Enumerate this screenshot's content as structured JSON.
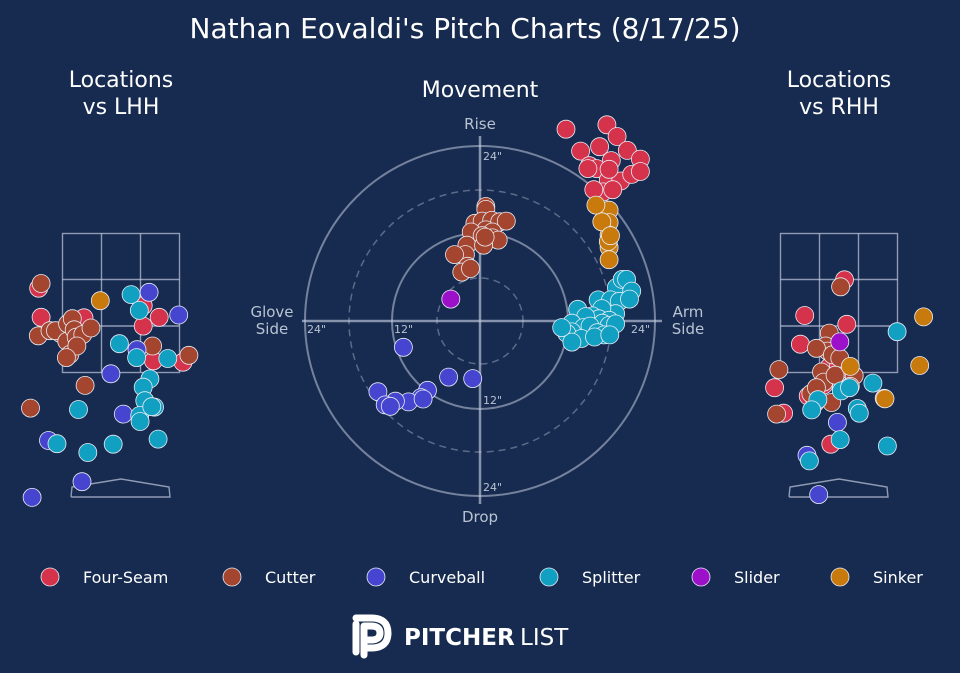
{
  "title": "Nathan Eovaldi's Pitch Charts (8/17/25)",
  "colors": {
    "background": "#162b4f",
    "Four-Seam": "#d5324b",
    "Cutter": "#a4452f",
    "Curveball": "#4545cf",
    "Splitter": "#12a0c2",
    "Slider": "#9b10c8",
    "Sinker": "#c87a0c"
  },
  "panels": {
    "lhh": {
      "title_line1": "Locations",
      "title_line2": "vs LHH"
    },
    "movement": {
      "title": "Movement",
      "label_top": "Rise",
      "label_bottom": "Drop",
      "label_left_1": "Glove",
      "label_left_2": "Side",
      "label_right_1": "Arm",
      "label_right_2": "Side",
      "ring_label_24": "24\"",
      "ring_label_12": "12\""
    },
    "rhh": {
      "title_line1": "Locations",
      "title_line2": "vs RHH"
    }
  },
  "legend": [
    "Four-Seam",
    "Cutter",
    "Curveball",
    "Splitter",
    "Slider",
    "Sinker"
  ],
  "brand": {
    "bold": "PITCHER",
    "light": "LIST"
  },
  "chart_data": [
    {
      "type": "scatter",
      "title": "Locations vs LHH",
      "units": "feet (catcher view)",
      "xlim": [
        -2.4,
        2.4
      ],
      "ylim": [
        -0.5,
        5.1
      ],
      "series": [
        {
          "name": "Four-Seam",
          "points": [
            [
              -2.11,
              4.23
            ],
            [
              -2.05,
              3.6
            ],
            [
              -0.95,
              3.59
            ],
            [
              0.57,
              3.85
            ],
            [
              0.98,
              3.6
            ],
            [
              0.57,
              3.41
            ],
            [
              0.83,
              2.66
            ],
            [
              1.59,
              2.63
            ]
          ]
        },
        {
          "name": "Cutter",
          "points": [
            [
              -2.05,
              4.33
            ],
            [
              -2.12,
              3.2
            ],
            [
              -1.82,
              3.31
            ],
            [
              -1.55,
              3.25
            ],
            [
              -1.68,
              3.31
            ],
            [
              -1.37,
              3.46
            ],
            [
              -1.39,
              3.08
            ],
            [
              -1.25,
              3.57
            ],
            [
              -1.2,
              3.33
            ],
            [
              -1.15,
              3.17
            ],
            [
              -1.31,
              2.8
            ],
            [
              -0.98,
              3.23
            ],
            [
              -0.77,
              3.37
            ],
            [
              -1.13,
              2.98
            ],
            [
              -1.4,
              2.73
            ],
            [
              -0.92,
              2.13
            ],
            [
              0.81,
              2.98
            ],
            [
              1.74,
              2.78
            ],
            [
              -2.32,
              1.64
            ]
          ]
        },
        {
          "name": "Curveball",
          "points": [
            [
              0.72,
              4.14
            ],
            [
              1.48,
              3.65
            ],
            [
              0.41,
              2.9
            ],
            [
              -0.26,
              2.38
            ],
            [
              0.06,
              1.51
            ],
            [
              -1.86,
              0.94
            ],
            [
              -1.0,
              0.05
            ],
            [
              -2.28,
              -0.29
            ]
          ]
        },
        {
          "name": "Splitter",
          "points": [
            [
              0.26,
              4.09
            ],
            [
              0.47,
              3.75
            ],
            [
              -0.04,
              3.03
            ],
            [
              0.4,
              2.73
            ],
            [
              0.74,
              2.27
            ],
            [
              0.57,
              2.09
            ],
            [
              0.61,
              1.8
            ],
            [
              0.86,
              1.66
            ],
            [
              1.2,
              2.71
            ],
            [
              0.48,
              1.48
            ],
            [
              0.49,
              1.35
            ],
            [
              -1.09,
              1.61
            ],
            [
              0.79,
              1.67
            ],
            [
              0.95,
              0.97
            ],
            [
              -1.64,
              0.87
            ],
            [
              -0.85,
              0.68
            ],
            [
              -0.2,
              0.86
            ]
          ]
        },
        {
          "name": "Slider",
          "points": []
        },
        {
          "name": "Sinker",
          "points": [
            [
              -0.53,
              3.96
            ]
          ]
        }
      ]
    },
    {
      "type": "scatter",
      "title": "Movement",
      "units": "inches",
      "xlim": [
        -36,
        36
      ],
      "ylim": [
        -36,
        36
      ],
      "x_axis": "Glove Side (-) to Arm Side (+)",
      "y_axis": "Drop (-) to Rise (+)",
      "rings_in": [
        12,
        24
      ],
      "series": [
        {
          "name": "Four-Seam",
          "points": [
            [
              11.8,
              26.3
            ],
            [
              13.8,
              23.3
            ],
            [
              15.0,
              21.3
            ],
            [
              16.4,
              23.9
            ],
            [
              17.4,
              26.9
            ],
            [
              18.8,
              25.3
            ],
            [
              20.2,
              23.4
            ],
            [
              18.0,
              22.0
            ],
            [
              16.0,
              20.9
            ],
            [
              17.6,
              19.3
            ],
            [
              19.3,
              19.2
            ],
            [
              20.8,
              20.1
            ],
            [
              16.9,
              17.7
            ],
            [
              18.2,
              18.0
            ],
            [
              17.7,
              20.8
            ],
            [
              15.6,
              18.0
            ],
            [
              14.8,
              20.9
            ],
            [
              22.0,
              22.2
            ],
            [
              22.0,
              20.5
            ]
          ]
        },
        {
          "name": "Cutter",
          "points": [
            [
              0.8,
              15.7
            ],
            [
              0.8,
              15.3
            ],
            [
              -0.7,
              13.4
            ],
            [
              0.3,
              13.7
            ],
            [
              1.6,
              13.8
            ],
            [
              2.7,
              13.6
            ],
            [
              3.6,
              13.7
            ],
            [
              0.8,
              12.5
            ],
            [
              1.7,
              12.2
            ],
            [
              -1.2,
              12.2
            ],
            [
              1.7,
              11.4
            ],
            [
              2.5,
              11.1
            ],
            [
              0.3,
              11.7
            ],
            [
              -1.8,
              10.4
            ],
            [
              0.5,
              10.4
            ],
            [
              -2.0,
              9.1
            ],
            [
              -3.5,
              9.1
            ],
            [
              -1.7,
              7.5
            ],
            [
              -2.5,
              6.7
            ],
            [
              -1.3,
              7.2
            ],
            [
              0.7,
              11.5
            ]
          ]
        },
        {
          "name": "Curveball",
          "points": [
            [
              -10.5,
              -3.6
            ],
            [
              -4.3,
              -7.7
            ],
            [
              -1.0,
              -7.9
            ],
            [
              -7.2,
              -9.5
            ],
            [
              -14.0,
              -9.7
            ],
            [
              -8.1,
              -10.5
            ],
            [
              -9.8,
              -11.1
            ],
            [
              -11.6,
              -11.0
            ],
            [
              -7.8,
              -10.7
            ],
            [
              -13.0,
              -11.5
            ],
            [
              -12.3,
              -11.7
            ]
          ]
        },
        {
          "name": "Splitter",
          "points": [
            [
              18.7,
              4.6
            ],
            [
              19.5,
              5.7
            ],
            [
              20.1,
              5.7
            ],
            [
              20.8,
              4.1
            ],
            [
              16.2,
              2.9
            ],
            [
              17.9,
              2.9
            ],
            [
              19.1,
              2.7
            ],
            [
              20.5,
              3.0
            ],
            [
              18.6,
              1.0
            ],
            [
              16.7,
              1.7
            ],
            [
              13.4,
              1.6
            ],
            [
              15.4,
              0.7
            ],
            [
              16.3,
              0.3
            ],
            [
              17.7,
              0.1
            ],
            [
              14.5,
              0.6
            ],
            [
              12.6,
              -0.3
            ],
            [
              16.8,
              -0.3
            ],
            [
              17.7,
              -0.6
            ],
            [
              18.6,
              -0.4
            ],
            [
              14.2,
              -0.9
            ],
            [
              15.1,
              -0.7
            ],
            [
              12.6,
              -1.5
            ],
            [
              11.9,
              -1.7
            ],
            [
              16.1,
              -1.6
            ],
            [
              17.0,
              -1.9
            ],
            [
              13.9,
              -2.4
            ],
            [
              12.6,
              -2.9
            ],
            [
              11.2,
              -0.9
            ],
            [
              15.7,
              -2.2
            ],
            [
              17.8,
              -1.9
            ]
          ]
        },
        {
          "name": "Slider",
          "points": [
            [
              -4.0,
              3.0
            ]
          ]
        },
        {
          "name": "Sinker",
          "points": [
            [
              17.7,
              15.2
            ],
            [
              17.7,
              13.5
            ],
            [
              17.7,
              11.8
            ],
            [
              17.7,
              10.1
            ],
            [
              17.7,
              8.4
            ],
            [
              17.6,
              10.9
            ],
            [
              16.7,
              13.6
            ],
            [
              15.9,
              15.9
            ],
            [
              17.9,
              11.7
            ]
          ]
        }
      ]
    },
    {
      "type": "scatter",
      "title": "Locations vs RHH",
      "units": "feet (catcher view)",
      "xlim": [
        -2.4,
        2.4
      ],
      "ylim": [
        -0.5,
        5.1
      ],
      "series": [
        {
          "name": "Four-Seam",
          "points": [
            [
              0.14,
              4.41
            ],
            [
              0.2,
              3.45
            ],
            [
              -0.88,
              3.64
            ],
            [
              -0.99,
              3.02
            ],
            [
              -0.13,
              2.92
            ],
            [
              -0.19,
              2.58
            ],
            [
              -0.26,
              2.52
            ],
            [
              0.22,
              2.48
            ],
            [
              -0.39,
              2.14
            ],
            [
              1.16,
              1.85
            ],
            [
              -0.79,
              1.9
            ],
            [
              -0.01,
              2.55
            ],
            [
              -1.65,
              2.08
            ],
            [
              -1.42,
              1.53
            ],
            [
              -0.15,
              2.92
            ],
            [
              -0.21,
              0.86
            ],
            [
              -0.62,
              1.74
            ]
          ]
        },
        {
          "name": "Cutter",
          "points": [
            [
              0.04,
              4.26
            ],
            [
              -0.25,
              3.26
            ],
            [
              -0.34,
              2.98
            ],
            [
              -0.29,
              2.87
            ],
            [
              -0.58,
              2.93
            ],
            [
              -0.17,
              2.79
            ],
            [
              0.02,
              2.72
            ],
            [
              -0.45,
              2.42
            ],
            [
              -0.39,
              2.2
            ],
            [
              -0.1,
              2.35
            ],
            [
              0.39,
              2.34
            ],
            [
              0.29,
              2.11
            ],
            [
              -1.54,
              2.47
            ],
            [
              -1.6,
              1.51
            ],
            [
              -0.72,
              1.95
            ],
            [
              -0.58,
              2.08
            ],
            [
              -0.19,
              1.76
            ]
          ]
        },
        {
          "name": "Curveball",
          "points": [
            [
              -0.04,
              1.33
            ],
            [
              -0.82,
              0.62
            ],
            [
              -0.52,
              -0.23
            ]
          ]
        },
        {
          "name": "Splitter",
          "points": [
            [
              0.06,
              2.01
            ],
            [
              1.49,
              3.29
            ],
            [
              0.27,
              2.08
            ],
            [
              0.87,
              2.18
            ],
            [
              0.47,
              1.63
            ],
            [
              0.52,
              1.53
            ],
            [
              -0.54,
              1.82
            ],
            [
              -0.7,
              1.6
            ],
            [
              0.03,
              0.96
            ],
            [
              1.24,
              0.82
            ],
            [
              -0.76,
              0.5
            ]
          ]
        },
        {
          "name": "Slider",
          "points": [
            [
              0.02,
              3.07
            ]
          ]
        },
        {
          "name": "Sinker",
          "points": [
            [
              2.17,
              3.61
            ],
            [
              2.07,
              2.56
            ],
            [
              0.29,
              2.54
            ],
            [
              1.18,
              1.84
            ]
          ]
        }
      ]
    }
  ]
}
